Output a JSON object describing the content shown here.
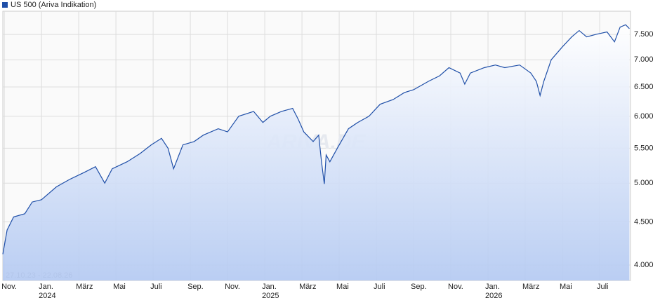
{
  "chart_data": {
    "type": "line",
    "title": "US 500 (Ariva Indikation)",
    "date_range": "27.10.23 - 22.08.26",
    "watermark": "ARIVA.DE",
    "x": [
      -0.08,
      0.15,
      0.5,
      1.1,
      1.5,
      2.0,
      2.8,
      3.5,
      4.3,
      4.9,
      5.4,
      5.8,
      6.6,
      7.3,
      7.9,
      8.45,
      8.8,
      9.1,
      9.6,
      10.2,
      10.7,
      11.5,
      12.0,
      12.6,
      13.4,
      13.9,
      14.3,
      14.9,
      15.5,
      15.8,
      16.1,
      16.6,
      16.9,
      17.05,
      17.2,
      17.3,
      17.5,
      17.9,
      18.5,
      19.0,
      19.6,
      20.2,
      20.9,
      21.5,
      22.0,
      22.8,
      23.4,
      23.9,
      24.5,
      24.75,
      25.05,
      25.8,
      26.4,
      26.9,
      27.7,
      28.3,
      28.6,
      28.8,
      29.0,
      29.4,
      30.0,
      30.5,
      30.9,
      31.3,
      31.8,
      32.4,
      32.8,
      33.1,
      33.4,
      33.6
    ],
    "series": [
      {
        "name": "US 500 (Ariva Indikation)",
        "color": "#1f4fa8",
        "values": [
          4120,
          4400,
          4560,
          4600,
          4750,
          4780,
          4950,
          5050,
          5150,
          5230,
          5000,
          5200,
          5300,
          5420,
          5550,
          5650,
          5500,
          5200,
          5550,
          5600,
          5700,
          5800,
          5750,
          6000,
          6080,
          5900,
          6000,
          6080,
          6130,
          5950,
          5750,
          5600,
          5700,
          5300,
          4990,
          5400,
          5300,
          5500,
          5800,
          5900,
          6000,
          6200,
          6280,
          6400,
          6450,
          6600,
          6700,
          6850,
          6750,
          6550,
          6750,
          6850,
          6900,
          6850,
          6900,
          6750,
          6600,
          6350,
          6600,
          7000,
          7250,
          7450,
          7580,
          7450,
          7500,
          7550,
          7350,
          7650,
          7700,
          7620
        ]
      }
    ],
    "xlim": [
      -0.08,
      33.66
    ],
    "xticks": [
      {
        "value": 0,
        "label": "Nov."
      },
      {
        "value": 2,
        "label": "Jan.\n2024"
      },
      {
        "value": 4,
        "label": "März"
      },
      {
        "value": 6,
        "label": "Mai"
      },
      {
        "value": 8,
        "label": "Juli"
      },
      {
        "value": 10,
        "label": "Sep."
      },
      {
        "value": 12,
        "label": "Nov."
      },
      {
        "value": 14,
        "label": "Jan.\n2025"
      },
      {
        "value": 16,
        "label": "März"
      },
      {
        "value": 18,
        "label": "Mai"
      },
      {
        "value": 20,
        "label": "Juli"
      },
      {
        "value": 22,
        "label": "Sep."
      },
      {
        "value": 24,
        "label": "Nov."
      },
      {
        "value": 26,
        "label": "Jan.\n2026"
      },
      {
        "value": 28,
        "label": "März"
      },
      {
        "value": 30,
        "label": "Mai"
      },
      {
        "value": 32,
        "label": "Juli"
      }
    ],
    "ylim": [
      3835,
      7990
    ],
    "log_scale": true,
    "grid": true,
    "yticks": [
      {
        "value": 4000,
        "label": "4.000"
      },
      {
        "value": 4500,
        "label": "4.500"
      },
      {
        "value": 5000,
        "label": "5.000"
      },
      {
        "value": 5500,
        "label": "5.500"
      },
      {
        "value": 6000,
        "label": "6.000"
      },
      {
        "value": 6500,
        "label": "6.500"
      },
      {
        "value": 7000,
        "label": "7.000"
      },
      {
        "value": 7500,
        "label": "7.500"
      }
    ]
  }
}
